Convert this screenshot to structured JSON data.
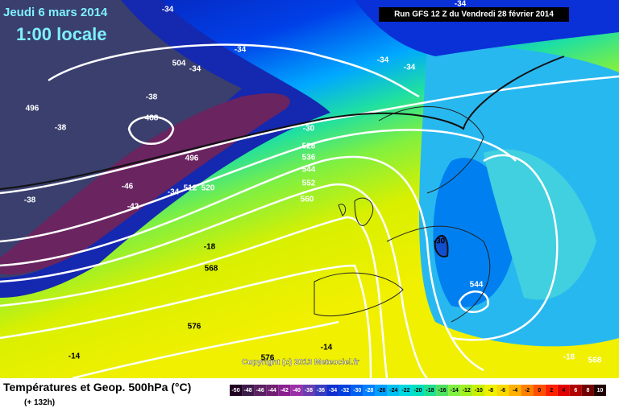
{
  "header": {
    "date": "Jeudi 6 mars 2014",
    "time": "1:00 locale",
    "run": "Run GFS 12 Z du Vendredi 28 février 2014"
  },
  "footer": {
    "title": "Températures et Geop. 500hPa (°C)",
    "lead": "(+ 132h)",
    "copyright": "Copyright (c) 2013 Meteociel.fr"
  },
  "contour_labels": [
    "-34",
    "-34",
    "-34",
    "504",
    "-34",
    "-34",
    "-34",
    "496",
    "-38",
    "488",
    "-38",
    "496",
    "-38",
    "-46",
    "-42",
    "-34",
    "512",
    "520",
    "-30",
    "528",
    "536",
    "544",
    "552",
    "560",
    "-30",
    "544",
    "-18",
    "568",
    "576",
    "-14",
    "-14",
    "576",
    "-18",
    "568"
  ],
  "legend": {
    "labels": [
      -50,
      -48,
      -46,
      -44,
      -42,
      -40,
      -38,
      -36,
      -34,
      -32,
      -30,
      -28,
      -26,
      -24,
      -22,
      -20,
      -18,
      -16,
      -14,
      -12,
      -10,
      -8,
      -6,
      -4,
      -2,
      0,
      2,
      4,
      6,
      8,
      10
    ],
    "colors": [
      "#200020",
      "#3c1a4a",
      "#5a2060",
      "#702070",
      "#8a2090",
      "#9a30a8",
      "#6a3cb0",
      "#3a3cc0",
      "#1030d0",
      "#0040e0",
      "#0060f0",
      "#0080ff",
      "#00a0ff",
      "#00c0f0",
      "#00d8e0",
      "#00e0c0",
      "#20e090",
      "#50e060",
      "#80f040",
      "#a0f020",
      "#c8f000",
      "#f0f000",
      "#f8d800",
      "#ffb000",
      "#ff8000",
      "#ff5000",
      "#ff2000",
      "#e00000",
      "#b00000",
      "#700000",
      "#200000"
    ]
  }
}
